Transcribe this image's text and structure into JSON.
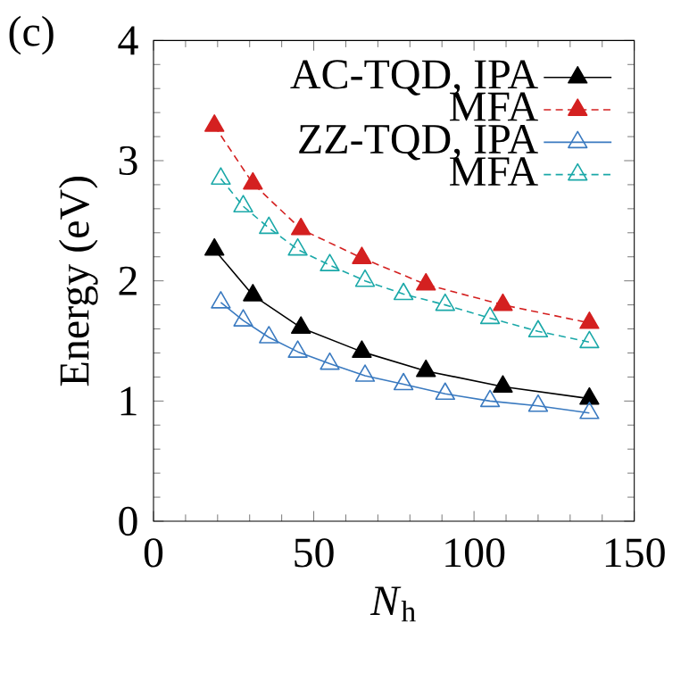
{
  "chart_data": {
    "type": "line",
    "xlabel": "*N*$_{h}$",
    "ylabel": "Energy (eV)",
    "annotations": [
      "(c)"
    ],
    "xlim": [
      0,
      150
    ],
    "xticks": [
      0,
      50,
      100,
      150
    ],
    "ylim": [
      0,
      4
    ],
    "yticks": [
      0,
      1,
      2,
      3,
      4
    ],
    "legend": "top right",
    "grid": false,
    "series": [
      {
        "name": "AC-TQD, IPA",
        "color": "#000000",
        "marker": "triangle",
        "line_style": "solid",
        "x": [
          19,
          31,
          46,
          65,
          85,
          109,
          136
        ],
        "values": [
          2.26,
          1.88,
          1.61,
          1.41,
          1.25,
          1.12,
          1.02
        ]
      },
      {
        "name": "MFA",
        "color": "#d42020",
        "marker": "triangle",
        "line_style": "dashed",
        "x": [
          19,
          31,
          46,
          65,
          85,
          109,
          136
        ],
        "values": [
          3.29,
          2.81,
          2.43,
          2.19,
          1.97,
          1.8,
          1.65
        ]
      },
      {
        "name": "ZZ-TQD, IPA",
        "color": "#3a7ac0",
        "marker": "triangle_open",
        "line_style": "solid",
        "x": [
          21,
          28,
          36,
          45,
          55,
          66,
          78,
          91,
          105,
          120,
          136
        ],
        "values": [
          1.82,
          1.67,
          1.53,
          1.41,
          1.31,
          1.21,
          1.14,
          1.06,
          1.0,
          0.96,
          0.9
        ]
      },
      {
        "name": "MFA",
        "color": "#1aa8a8",
        "marker": "triangle_open",
        "line_style": "dashed",
        "x": [
          21,
          28,
          36,
          45,
          55,
          66,
          78,
          91,
          105,
          120,
          136
        ],
        "values": [
          2.85,
          2.62,
          2.44,
          2.26,
          2.13,
          2.0,
          1.89,
          1.8,
          1.69,
          1.58,
          1.49
        ]
      }
    ]
  }
}
